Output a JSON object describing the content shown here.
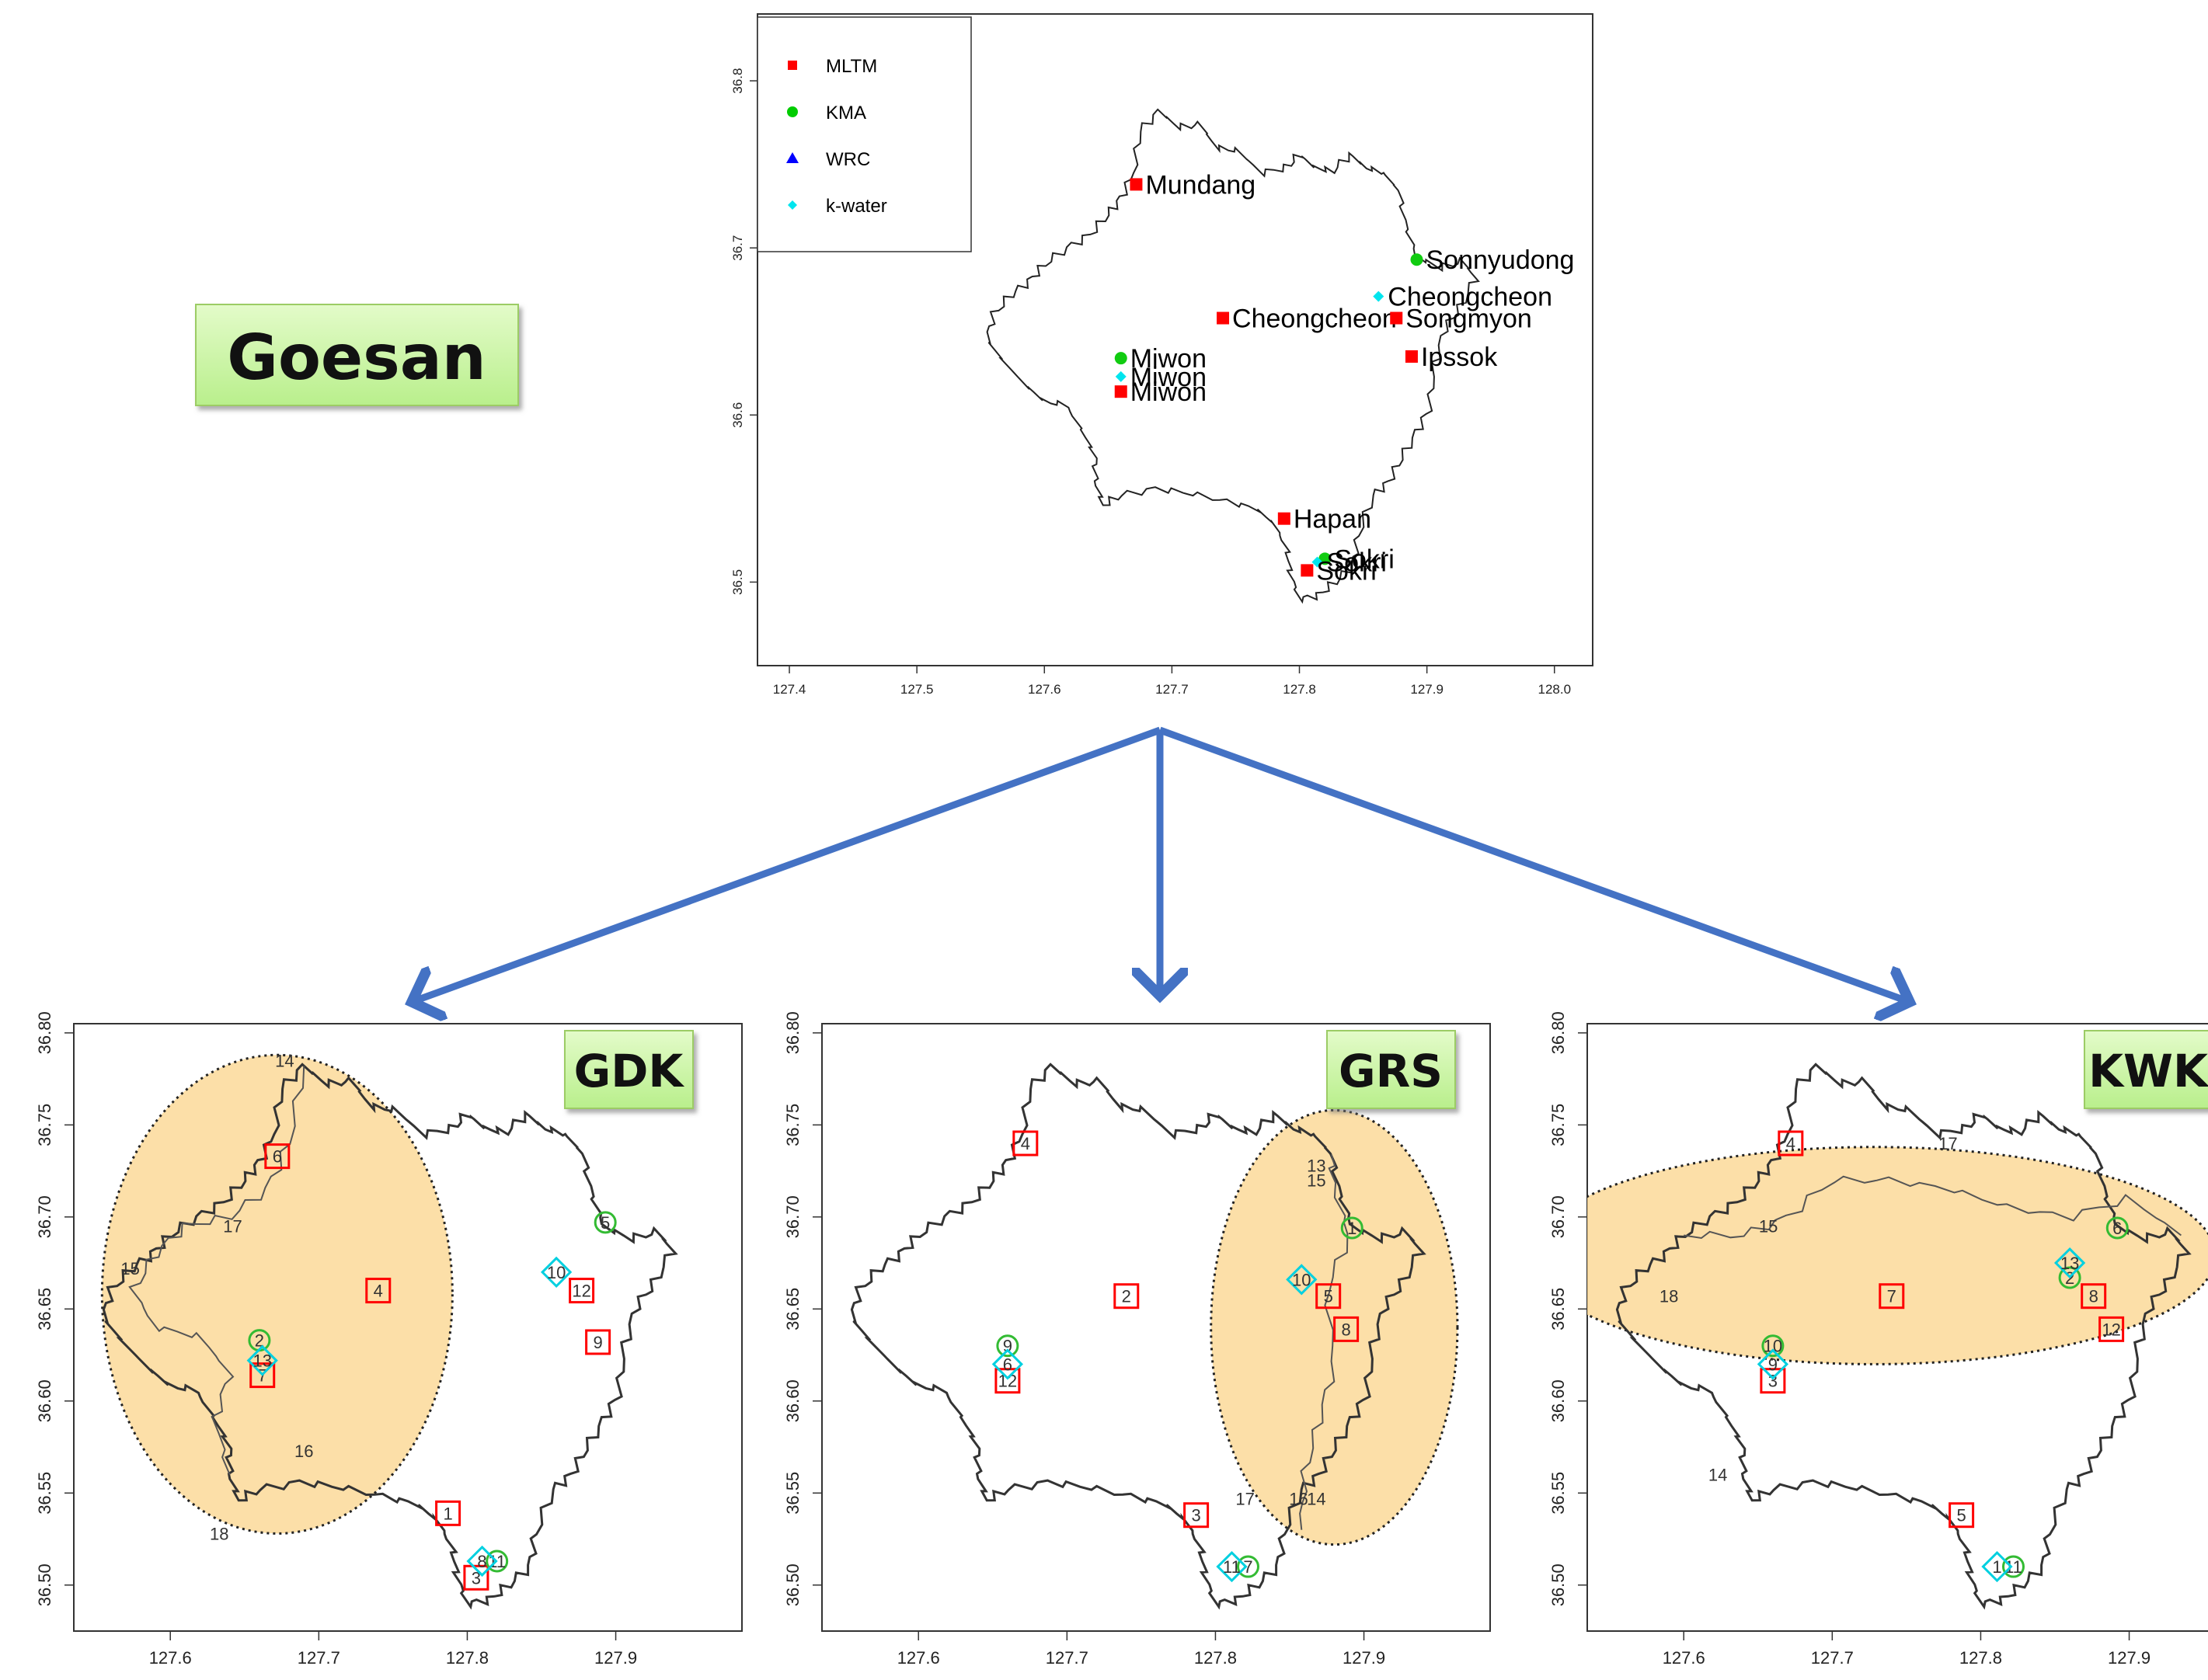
{
  "title": "Goesan",
  "top_map": {
    "legend": [
      {
        "label": "MLTM",
        "symbol": "square",
        "color": "#ff0000"
      },
      {
        "label": "KMA",
        "symbol": "circle",
        "color": "#00cc00"
      },
      {
        "label": "WRC",
        "symbol": "triangle",
        "color": "#0000ff"
      },
      {
        "label": "k-water",
        "symbol": "diamond",
        "color": "#00e5ee"
      }
    ],
    "x_ticks": [
      "127.4",
      "127.5",
      "127.6",
      "127.7",
      "127.8",
      "127.9",
      "128.0"
    ],
    "y_ticks": [
      "36.5",
      "36.6",
      "36.7",
      "36.8"
    ],
    "stations": [
      {
        "name": "Mundang",
        "lon": 127.672,
        "lat": 36.738,
        "type": "MLTM"
      },
      {
        "name": "Sonnyudong",
        "lon": 127.892,
        "lat": 36.693,
        "type": "KMA"
      },
      {
        "name": "Cheongcheon",
        "lon": 127.862,
        "lat": 36.671,
        "type": "k-water"
      },
      {
        "name": "Cheongcheon",
        "lon": 127.74,
        "lat": 36.658,
        "type": "MLTM"
      },
      {
        "name": "Songmyon",
        "lon": 127.876,
        "lat": 36.658,
        "type": "MLTM"
      },
      {
        "name": "Ipssok",
        "lon": 127.888,
        "lat": 36.635,
        "type": "MLTM"
      },
      {
        "name": "Miwon",
        "lon": 127.66,
        "lat": 36.634,
        "type": "KMA"
      },
      {
        "name": "Miwon",
        "lon": 127.66,
        "lat": 36.623,
        "type": "k-water"
      },
      {
        "name": "Miwon",
        "lon": 127.66,
        "lat": 36.614,
        "type": "MLTM"
      },
      {
        "name": "Hapan",
        "lon": 127.788,
        "lat": 36.538,
        "type": "MLTM"
      },
      {
        "name": "Sokri",
        "lon": 127.82,
        "lat": 36.514,
        "type": "KMA"
      },
      {
        "name": "Sokri",
        "lon": 127.814,
        "lat": 36.512,
        "type": "k-water"
      },
      {
        "name": "Sokri",
        "lon": 127.806,
        "lat": 36.507,
        "type": "MLTM"
      }
    ]
  },
  "panels": [
    {
      "badge": "GDK",
      "x_ticks": [
        "127.6",
        "127.7",
        "127.8",
        "127.9"
      ],
      "y_ticks": [
        "36.50",
        "36.55",
        "36.60",
        "36.65",
        "36.70",
        "36.75",
        "36.80"
      ],
      "ellipse": {
        "cx_lon": 127.672,
        "cy_lat": 36.658,
        "rx_lon": 0.118,
        "ry_lat": 0.13
      },
      "markers": [
        {
          "id": "6",
          "type": "square",
          "lon": 127.672,
          "lat": 36.733
        },
        {
          "id": "4",
          "type": "square",
          "lon": 127.74,
          "lat": 36.66
        },
        {
          "id": "12",
          "type": "square",
          "lon": 127.877,
          "lat": 36.66
        },
        {
          "id": "9",
          "type": "square",
          "lon": 127.888,
          "lat": 36.632
        },
        {
          "id": "7",
          "type": "square",
          "lon": 127.662,
          "lat": 36.614
        },
        {
          "id": "1",
          "type": "square",
          "lon": 127.787,
          "lat": 36.539
        },
        {
          "id": "3",
          "type": "square",
          "lon": 127.806,
          "lat": 36.504
        },
        {
          "id": "2",
          "type": "circle",
          "lon": 127.66,
          "lat": 36.633
        },
        {
          "id": "5",
          "type": "circle",
          "lon": 127.893,
          "lat": 36.697
        },
        {
          "id": "11",
          "type": "circle",
          "lon": 127.82,
          "lat": 36.513
        },
        {
          "id": "10",
          "type": "diamond",
          "lon": 127.86,
          "lat": 36.67
        },
        {
          "id": "13",
          "type": "diamond",
          "lon": 127.662,
          "lat": 36.622
        },
        {
          "id": "8",
          "type": "diamond",
          "lon": 127.81,
          "lat": 36.513
        }
      ],
      "labels": [
        {
          "id": "14",
          "lon": 127.677,
          "lat": 36.785
        },
        {
          "id": "17",
          "lon": 127.642,
          "lat": 36.695
        },
        {
          "id": "15",
          "lon": 127.573,
          "lat": 36.672
        },
        {
          "id": "16",
          "lon": 127.69,
          "lat": 36.573
        },
        {
          "id": "18",
          "lon": 127.633,
          "lat": 36.528
        }
      ]
    },
    {
      "badge": "GRS",
      "x_ticks": [
        "127.6",
        "127.7",
        "127.8",
        "127.9"
      ],
      "y_ticks": [
        "36.50",
        "36.55",
        "36.60",
        "36.65",
        "36.70",
        "36.75",
        "36.80"
      ],
      "ellipse": {
        "cx_lon": 127.88,
        "cy_lat": 36.64,
        "rx_lon": 0.083,
        "ry_lat": 0.118
      },
      "markers": [
        {
          "id": "4",
          "type": "square",
          "lon": 127.672,
          "lat": 36.74
        },
        {
          "id": "2",
          "type": "square",
          "lon": 127.74,
          "lat": 36.657
        },
        {
          "id": "5",
          "type": "square",
          "lon": 127.876,
          "lat": 36.657
        },
        {
          "id": "8",
          "type": "square",
          "lon": 127.888,
          "lat": 36.639
        },
        {
          "id": "12",
          "type": "square",
          "lon": 127.66,
          "lat": 36.611
        },
        {
          "id": "3",
          "type": "square",
          "lon": 127.787,
          "lat": 36.538
        },
        {
          "id": "1",
          "type": "circle",
          "lon": 127.892,
          "lat": 36.694
        },
        {
          "id": "9",
          "type": "circle",
          "lon": 127.66,
          "lat": 36.63
        },
        {
          "id": "7",
          "type": "circle",
          "lon": 127.822,
          "lat": 36.51
        },
        {
          "id": "10",
          "type": "diamond",
          "lon": 127.858,
          "lat": 36.666
        },
        {
          "id": "6",
          "type": "diamond",
          "lon": 127.66,
          "lat": 36.62
        },
        {
          "id": "11",
          "type": "diamond",
          "lon": 127.811,
          "lat": 36.51
        }
      ],
      "labels": [
        {
          "id": "13",
          "lon": 127.868,
          "lat": 36.728
        },
        {
          "id": "15",
          "lon": 127.868,
          "lat": 36.72
        },
        {
          "id": "17",
          "lon": 127.82,
          "lat": 36.547
        },
        {
          "id": "16",
          "lon": 127.856,
          "lat": 36.547
        },
        {
          "id": "14",
          "lon": 127.868,
          "lat": 36.547
        }
      ]
    },
    {
      "badge": "KWK",
      "x_ticks": [
        "127.6",
        "127.7",
        "127.8",
        "127.9"
      ],
      "y_ticks": [
        "36.50",
        "36.55",
        "36.60",
        "36.65",
        "36.70",
        "36.75",
        "36.80"
      ],
      "ellipse": {
        "cx_lon": 127.728,
        "cy_lat": 36.679,
        "rx_lon": 0.23,
        "ry_lat": 0.059
      },
      "markers": [
        {
          "id": "4",
          "type": "square",
          "lon": 127.672,
          "lat": 36.74
        },
        {
          "id": "7",
          "type": "square",
          "lon": 127.74,
          "lat": 36.657
        },
        {
          "id": "8",
          "type": "square",
          "lon": 127.876,
          "lat": 36.657
        },
        {
          "id": "12",
          "type": "square",
          "lon": 127.888,
          "lat": 36.639
        },
        {
          "id": "3",
          "type": "square",
          "lon": 127.66,
          "lat": 36.611
        },
        {
          "id": "5",
          "type": "square",
          "lon": 127.787,
          "lat": 36.538
        },
        {
          "id": "6",
          "type": "circle",
          "lon": 127.892,
          "lat": 36.694
        },
        {
          "id": "2",
          "type": "circle",
          "lon": 127.86,
          "lat": 36.667
        },
        {
          "id": "10",
          "type": "circle",
          "lon": 127.66,
          "lat": 36.63
        },
        {
          "id": "11",
          "type": "circle",
          "lon": 127.822,
          "lat": 36.51
        },
        {
          "id": "13",
          "type": "diamond",
          "lon": 127.86,
          "lat": 36.675
        },
        {
          "id": "9",
          "type": "diamond",
          "lon": 127.66,
          "lat": 36.62
        },
        {
          "id": "1",
          "type": "diamond",
          "lon": 127.811,
          "lat": 36.51
        }
      ],
      "labels": [
        {
          "id": "17",
          "lon": 127.778,
          "lat": 36.74
        },
        {
          "id": "15",
          "lon": 127.657,
          "lat": 36.695
        },
        {
          "id": "18",
          "lon": 127.59,
          "lat": 36.657
        },
        {
          "id": "14",
          "lon": 127.623,
          "lat": 36.56
        }
      ]
    }
  ],
  "colors": {
    "square": "#ff0000",
    "circle": "#33bb33",
    "diamond": "#00d0e0",
    "arrow": "#4472c4",
    "ellipse_fill": "#fbd999",
    "badge_fill": "#ccf5a6"
  }
}
